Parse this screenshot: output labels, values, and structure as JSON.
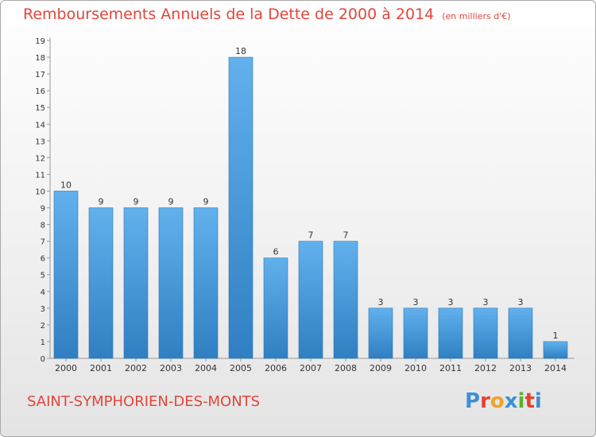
{
  "header": {
    "title": "Remboursements Annuels de la Dette de 2000 à 2014",
    "unit_note": "(en milliers d'€)"
  },
  "footer": {
    "town": "SAINT-SYMPHORIEN-DES-MONTS",
    "logo_text": "Proxiti",
    "logo_colors": [
      "#3d8fd6",
      "#e5432f",
      "#f0a22a",
      "#3d8fd6",
      "#58b12f",
      "#e5432f",
      "#3d8fd6"
    ]
  },
  "chart_data": {
    "type": "bar",
    "title": "Remboursements Annuels de la Dette de 2000 à 2014",
    "subtitle": "(en milliers d'€)",
    "xlabel": "",
    "ylabel": "",
    "categories": [
      "2000",
      "2001",
      "2002",
      "2003",
      "2004",
      "2005",
      "2006",
      "2007",
      "2008",
      "2009",
      "2010",
      "2011",
      "2012",
      "2013",
      "2014"
    ],
    "values": [
      10,
      9,
      9,
      9,
      9,
      18,
      6,
      7,
      7,
      3,
      3,
      3,
      3,
      3,
      1
    ],
    "ylim": [
      0,
      19
    ],
    "yticks": [
      0,
      1,
      2,
      3,
      4,
      5,
      6,
      7,
      8,
      9,
      10,
      11,
      12,
      13,
      14,
      15,
      16,
      17,
      18,
      19
    ],
    "grid": false,
    "legend": "none",
    "colors": {
      "bar_top": "#62b1ed",
      "bar_bottom": "#2f7fc2",
      "axis": "#999999"
    }
  }
}
